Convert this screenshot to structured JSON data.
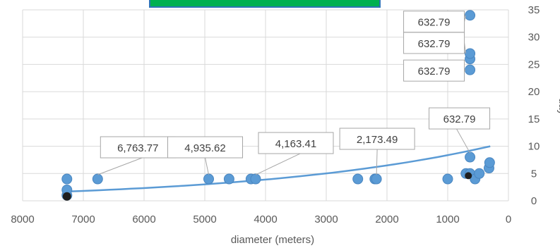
{
  "chart_data": {
    "type": "scatter",
    "title": "",
    "xlabel": "diameter (meters)",
    "ylabel": "day",
    "xlim": [
      8000,
      0
    ],
    "x_reversed": true,
    "ylim": [
      0,
      35
    ],
    "x_ticks": [
      "8000",
      "7000",
      "6000",
      "5000",
      "4000",
      "3000",
      "2000",
      "1000",
      "0"
    ],
    "x_tick_values": [
      8000,
      7000,
      6000,
      5000,
      4000,
      3000,
      2000,
      1000,
      0
    ],
    "y_ticks": [
      "0",
      "5",
      "10",
      "15",
      "20",
      "25",
      "30",
      "35"
    ],
    "y_tick_values": [
      0,
      5,
      10,
      15,
      20,
      25,
      30,
      35
    ],
    "y_axis_side": "right",
    "grid": {
      "vertical": true,
      "horizontal": true
    },
    "marker_color": "#5B9BD5",
    "trendline": {
      "type": "exponential",
      "color": "#5B9BD5",
      "from": {
        "x": 7250,
        "y": 1.7
      },
      "to": {
        "x": 300,
        "y": 10
      }
    },
    "series": [
      {
        "points": [
          {
            "x": 7270,
            "y": 1
          },
          {
            "x": 7270,
            "y": 2
          },
          {
            "x": 7270,
            "y": 4
          },
          {
            "x": 6764,
            "y": 4
          },
          {
            "x": 4936,
            "y": 4
          },
          {
            "x": 4600,
            "y": 4
          },
          {
            "x": 4240,
            "y": 4
          },
          {
            "x": 4163,
            "y": 4
          },
          {
            "x": 2480,
            "y": 4
          },
          {
            "x": 2200,
            "y": 4
          },
          {
            "x": 2173,
            "y": 4
          },
          {
            "x": 1000,
            "y": 4
          },
          {
            "x": 700,
            "y": 5
          },
          {
            "x": 633,
            "y": 5
          },
          {
            "x": 633,
            "y": 8
          },
          {
            "x": 633,
            "y": 24
          },
          {
            "x": 633,
            "y": 26
          },
          {
            "x": 633,
            "y": 27
          },
          {
            "x": 633,
            "y": 34
          },
          {
            "x": 550,
            "y": 4
          },
          {
            "x": 480,
            "y": 5
          },
          {
            "x": 320,
            "y": 6
          },
          {
            "x": 310,
            "y": 7
          }
        ]
      }
    ],
    "data_labels": [
      {
        "text": "6,763.77",
        "x": 6764,
        "y": 4
      },
      {
        "text": "4,935.62",
        "x": 4936,
        "y": 4
      },
      {
        "text": "4,163.41",
        "x": 4163,
        "y": 4
      },
      {
        "text": "2,173.49",
        "x": 2173,
        "y": 4
      },
      {
        "text": "632.79",
        "x": 633,
        "y": 8
      },
      {
        "text": "632.79",
        "x": 633,
        "y": 24
      },
      {
        "text": "632.79",
        "x": 633,
        "y": 27
      },
      {
        "text": "632.79",
        "x": 633,
        "y": 34
      }
    ]
  },
  "legend_bar": {
    "fill": "#00B050",
    "border": "#2E75B6"
  }
}
